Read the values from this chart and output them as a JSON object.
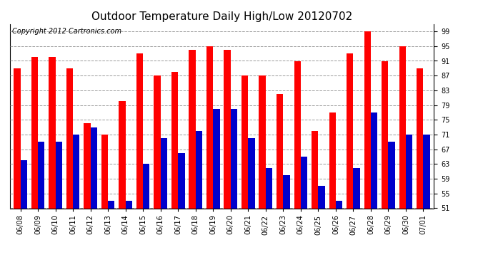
{
  "title": "Outdoor Temperature Daily High/Low 20120702",
  "copyright": "Copyright 2012 Cartronics.com",
  "dates": [
    "06/08",
    "06/09",
    "06/10",
    "06/11",
    "06/12",
    "06/13",
    "06/14",
    "06/15",
    "06/16",
    "06/17",
    "06/18",
    "06/19",
    "06/20",
    "06/21",
    "06/22",
    "06/23",
    "06/24",
    "06/25",
    "06/26",
    "06/27",
    "06/28",
    "06/29",
    "06/30",
    "07/01"
  ],
  "highs": [
    89,
    92,
    92,
    89,
    74,
    71,
    80,
    93,
    87,
    88,
    94,
    95,
    94,
    87,
    87,
    82,
    91,
    72,
    77,
    93,
    99,
    91,
    95,
    89
  ],
  "lows": [
    64,
    69,
    69,
    71,
    73,
    53,
    53,
    63,
    70,
    66,
    72,
    78,
    78,
    70,
    62,
    60,
    65,
    57,
    53,
    62,
    77,
    69,
    71,
    71
  ],
  "high_color": "#ff0000",
  "low_color": "#0000cc",
  "bg_color": "#ffffff",
  "grid_color": "#999999",
  "ylim_min": 51,
  "ylim_max": 101,
  "yticks": [
    51.0,
    55.0,
    59.0,
    63.0,
    67.0,
    71.0,
    75.0,
    79.0,
    83.0,
    87.0,
    91.0,
    95.0,
    99.0
  ],
  "bar_width": 0.38,
  "title_fontsize": 11,
  "tick_fontsize": 7,
  "copyright_fontsize": 7
}
